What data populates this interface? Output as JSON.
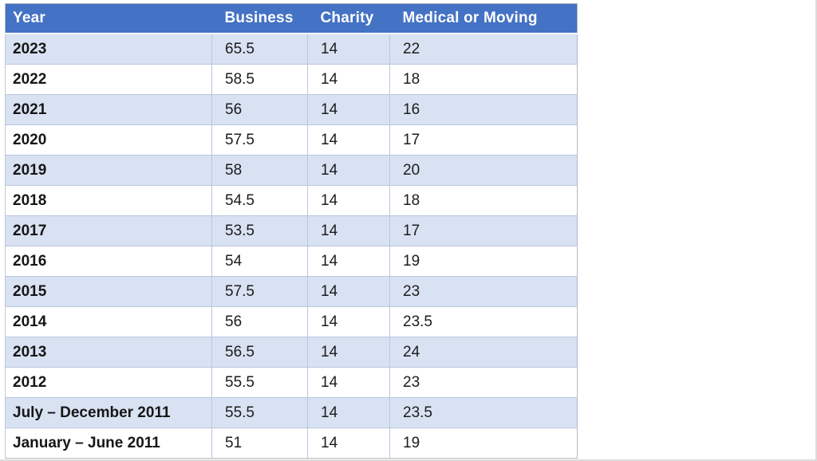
{
  "page": {
    "background": "#ffffff"
  },
  "table": {
    "columns": [
      {
        "key": "year",
        "label": "Year"
      },
      {
        "key": "business",
        "label": "Business"
      },
      {
        "key": "charity",
        "label": "Charity"
      },
      {
        "key": "medical",
        "label": "Medical or Moving"
      }
    ],
    "rows": [
      {
        "year": "2023",
        "business": "65.5",
        "charity": "14",
        "medical": "22"
      },
      {
        "year": "2022",
        "business": "58.5",
        "charity": "14",
        "medical": "18"
      },
      {
        "year": "2021",
        "business": "56",
        "charity": "14",
        "medical": "16"
      },
      {
        "year": "2020",
        "business": "57.5",
        "charity": "14",
        "medical": "17"
      },
      {
        "year": "2019",
        "business": "58",
        "charity": "14",
        "medical": "20"
      },
      {
        "year": "2018",
        "business": "54.5",
        "charity": "14",
        "medical": "18"
      },
      {
        "year": "2017",
        "business": "53.5",
        "charity": "14",
        "medical": "17"
      },
      {
        "year": "2016",
        "business": "54",
        "charity": "14",
        "medical": "19"
      },
      {
        "year": "2015",
        "business": "57.5",
        "charity": "14",
        "medical": "23"
      },
      {
        "year": "2014",
        "business": "56",
        "charity": "14",
        "medical": "23.5"
      },
      {
        "year": "2013",
        "business": "56.5",
        "charity": "14",
        "medical": "24"
      },
      {
        "year": "2012",
        "business": "55.5",
        "charity": "14",
        "medical": "23"
      },
      {
        "year": "July – December 2011",
        "business": "55.5",
        "charity": "14",
        "medical": "23.5"
      },
      {
        "year": "January – June 2011",
        "business": "51",
        "charity": "14",
        "medical": "19"
      }
    ],
    "colors": {
      "header_bg": "#4472c4",
      "header_text": "#ffffff",
      "band_row_bg": "#d9e2f2",
      "plain_row_bg": "#ffffff",
      "grid_line": "#b9c6de",
      "body_text": "#1c1c1c"
    }
  },
  "chart_data": {
    "type": "table",
    "columns": [
      "Year",
      "Business",
      "Charity",
      "Medical or Moving"
    ],
    "rows": [
      [
        "2023",
        65.5,
        14,
        22
      ],
      [
        "2022",
        58.5,
        14,
        18
      ],
      [
        "2021",
        56,
        14,
        16
      ],
      [
        "2020",
        57.5,
        14,
        17
      ],
      [
        "2019",
        58,
        14,
        20
      ],
      [
        "2018",
        54.5,
        14,
        18
      ],
      [
        "2017",
        53.5,
        14,
        17
      ],
      [
        "2016",
        54,
        14,
        19
      ],
      [
        "2015",
        57.5,
        14,
        23
      ],
      [
        "2014",
        56,
        14,
        23.5
      ],
      [
        "2013",
        56.5,
        14,
        24
      ],
      [
        "2012",
        55.5,
        14,
        23
      ],
      [
        "July – December 2011",
        55.5,
        14,
        23.5
      ],
      [
        "January – June 2011",
        51,
        14,
        19
      ]
    ],
    "layout": {
      "header_fill": "#4472c4",
      "banded_rows": true,
      "band_fill": "#d9e2f2"
    }
  }
}
